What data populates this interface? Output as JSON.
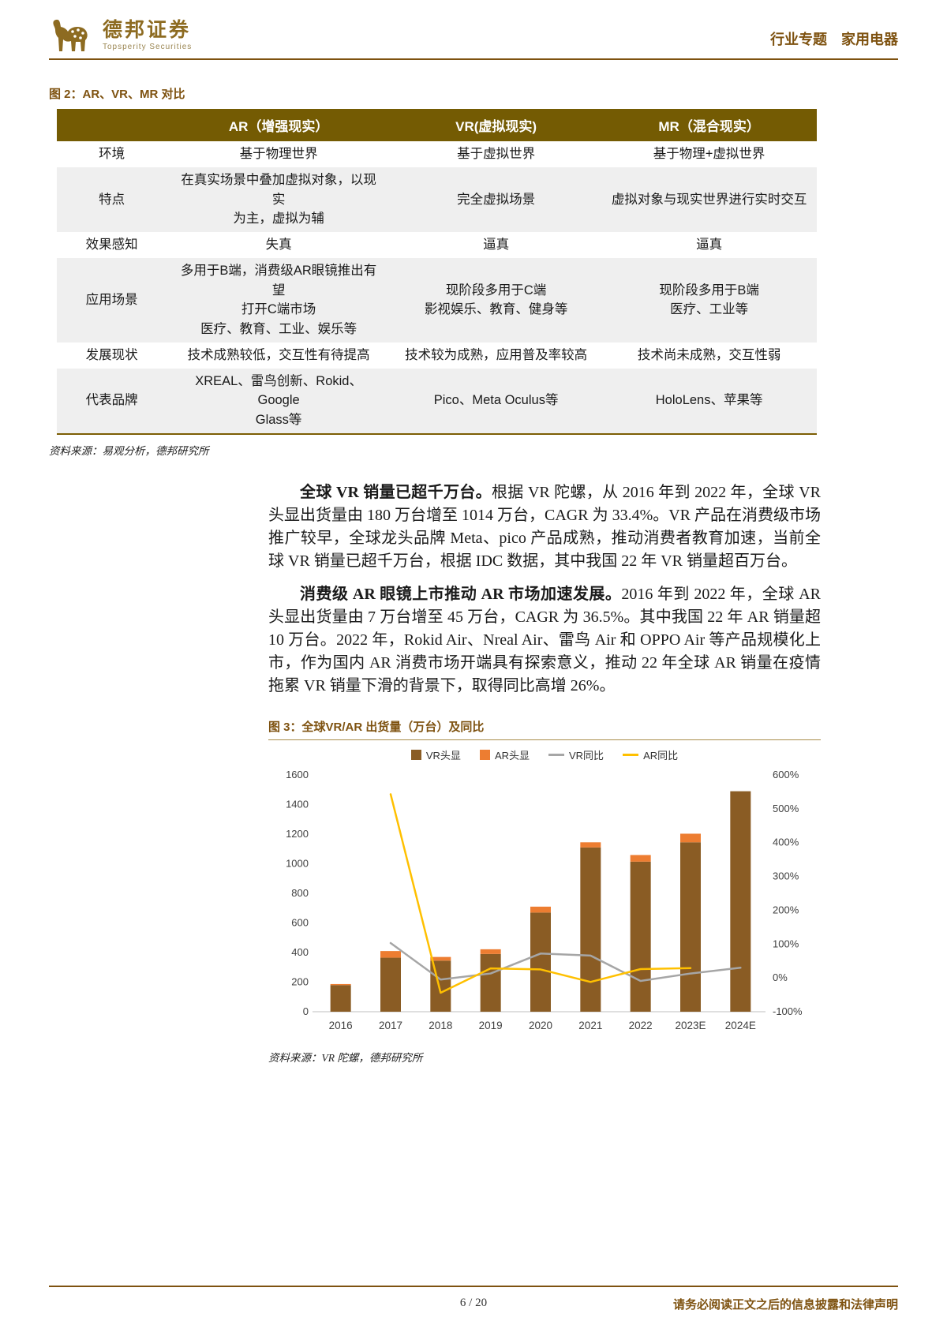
{
  "header": {
    "brand_name": "德邦证券",
    "brand_sub": "Topsperity Securities",
    "right_text": "行业专题　家用电器"
  },
  "figure2": {
    "caption": "图 2：AR、VR、MR 对比",
    "source": "资料来源：易观分析，德邦研究所",
    "table": {
      "columns": [
        "",
        "AR（增强现实）",
        "VR(虚拟现实)",
        "MR（混合现实）"
      ],
      "rows": [
        {
          "label": "环境",
          "cells": [
            "基于物理世界",
            "基于虚拟世界",
            "基于物理+虚拟世界"
          ]
        },
        {
          "label": "特点",
          "cells": [
            "在真实场景中叠加虚拟对象，以现实\n为主，虚拟为辅",
            "完全虚拟场景",
            "虚拟对象与现实世界进行实时交互"
          ]
        },
        {
          "label": "效果感知",
          "cells": [
            "失真",
            "逼真",
            "逼真"
          ]
        },
        {
          "label": "应用场景",
          "cells": [
            "多用于B端，消费级AR眼镜推出有望\n打开C端市场\n医疗、教育、工业、娱乐等",
            "现阶段多用于C端\n影视娱乐、教育、健身等",
            "现阶段多用于B端\n医疗、工业等"
          ]
        },
        {
          "label": "发展现状",
          "cells": [
            "技术成熟较低，交互性有待提高",
            "技术较为成熟，应用普及率较高",
            "技术尚未成熟，交互性弱"
          ]
        },
        {
          "label": "代表品牌",
          "cells": [
            "XREAL、雷鸟创新、Rokid、Google\nGlass等",
            "Pico、Meta Oculus等",
            "HoloLens、苹果等"
          ]
        }
      ]
    }
  },
  "paragraphs": [
    {
      "lead": "全球 VR 销量已超千万台。",
      "text": "根据 VR 陀螺，从 2016 年到 2022 年，全球 VR 头显出货量由 180 万台增至 1014 万台，CAGR 为 33.4%。VR 产品在消费级市场推广较早，全球龙头品牌 Meta、pico 产品成熟，推动消费者教育加速，当前全球 VR 销量已超千万台，根据 IDC 数据，其中我国 22 年 VR 销量超百万台。"
    },
    {
      "lead": "消费级 AR 眼镜上市推动 AR 市场加速发展。",
      "text": "2016 年到 2022 年，全球 AR 头显出货量由 7 万台增至 45 万台，CAGR 为 36.5%。其中我国 22 年 AR 销量超 10 万台。2022 年，Rokid Air、Nreal Air、雷鸟 Air 和 OPPO Air 等产品规模化上市，作为国内 AR 消费市场开端具有探索意义，推动 22 年全球 AR 销量在疫情拖累 VR 销量下滑的背景下，取得同比高增 26%。"
    }
  ],
  "figure3": {
    "caption": "图 3：全球VR/AR 出货量（万台）及同比",
    "source": "资料来源：VR 陀螺，德邦研究所",
    "chart_data": {
      "type": "bar",
      "subtype": "stacked-bars-with-yoy-lines",
      "title": "全球VR/AR 出货量（万台）及同比",
      "categories": [
        "2016",
        "2017",
        "2018",
        "2019",
        "2020",
        "2021",
        "2022",
        "2023E",
        "2024E"
      ],
      "bar_series": [
        {
          "name": "VR头显",
          "color": "#8a5c24",
          "values": [
            180,
            365,
            345,
            390,
            670,
            1110,
            1014,
            1145,
            1490
          ]
        },
        {
          "name": "AR头显",
          "color": "#ED7D31",
          "values": [
            7,
            45,
            25,
            32,
            40,
            35,
            45,
            58,
            0
          ]
        }
      ],
      "line_series": [
        {
          "name": "VR同比",
          "color": "#A6A6A6",
          "axis": "right",
          "values": [
            null,
            103,
            -5,
            13,
            72,
            66,
            -9,
            13,
            30
          ]
        },
        {
          "name": "AR同比",
          "color": "#FFC000",
          "axis": "right",
          "values": [
            null,
            543,
            -44,
            28,
            25,
            -12,
            26,
            29,
            null
          ]
        }
      ],
      "left_axis": {
        "min": 0,
        "max": 1600,
        "step": 200
      },
      "right_axis": {
        "min": -100,
        "max": 600,
        "step": 100,
        "suffix": "%"
      },
      "legend": [
        "VR头显",
        "AR头显",
        "VR同比",
        "AR同比"
      ],
      "legend_position": "top",
      "grid": false
    }
  },
  "footer": {
    "page_num": "6 / 20",
    "disclaimer": "请务必阅读正文之后的信息披露和法律声明"
  },
  "colors": {
    "accent": "#7e5210",
    "table_header_bg": "#745b03",
    "stripe": "#efefef",
    "bar_vr": "#8a5c24",
    "bar_ar": "#ED7D31",
    "line_vr": "#A6A6A6",
    "line_ar": "#FFC000"
  }
}
